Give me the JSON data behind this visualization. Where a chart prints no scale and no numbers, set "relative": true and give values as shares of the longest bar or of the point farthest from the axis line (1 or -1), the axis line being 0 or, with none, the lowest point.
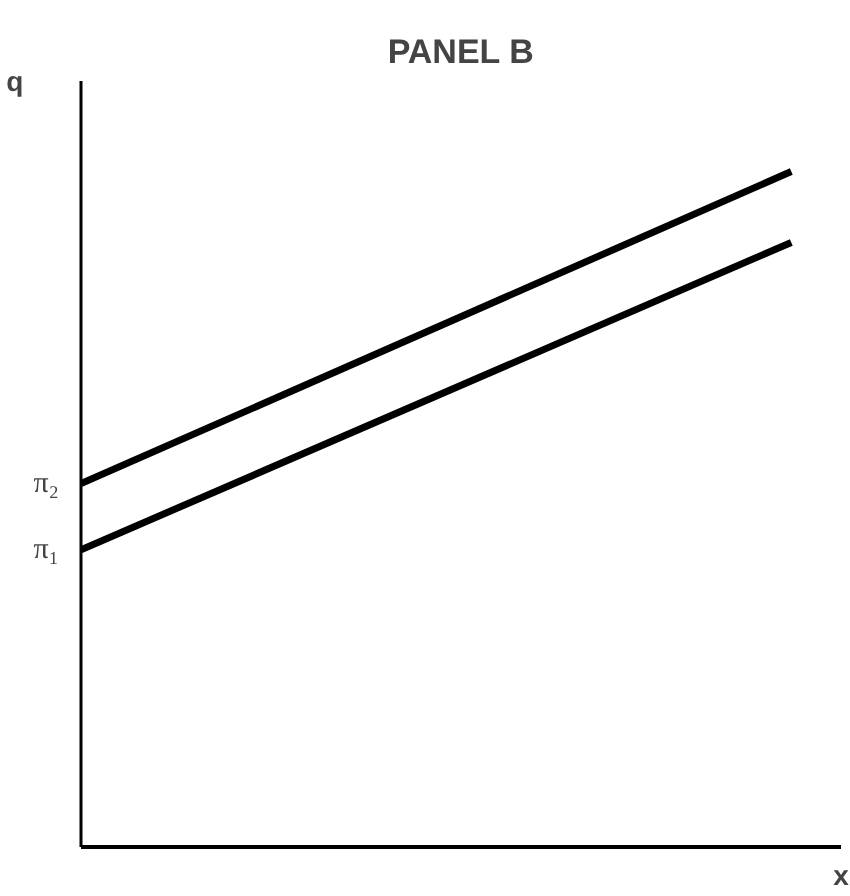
{
  "chart_data": {
    "type": "line",
    "title": "PANEL B",
    "xlabel": "x",
    "ylabel": "q",
    "relative": true,
    "categories": [
      null,
      null
    ],
    "series": [
      {
        "color": "#000000",
        "values": [
          0.538,
          1
        ]
      },
      {
        "color": "#000000",
        "values": [
          0.44,
          0.895
        ]
      }
    ],
    "annotations": [
      "π₂",
      "π₁"
    ],
    "grid": false,
    "legend": false,
    "tick_labels": false,
    "marker": "none",
    "line_style": "solid"
  }
}
